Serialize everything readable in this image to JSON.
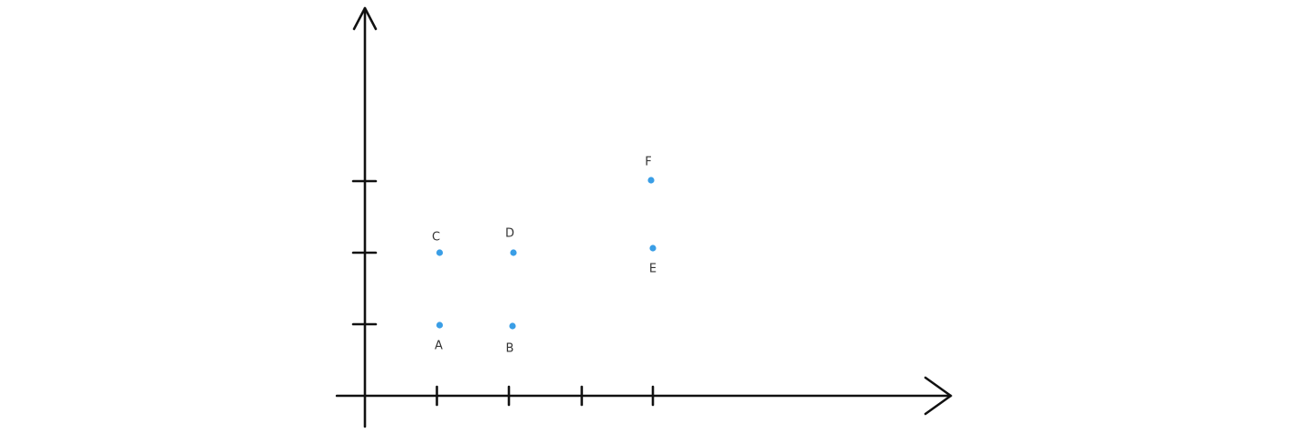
{
  "chart_data": {
    "type": "scatter",
    "grid": false,
    "x_ticks": [
      1,
      2,
      3,
      4
    ],
    "y_ticks": [
      1,
      2,
      3
    ],
    "point_color": "#3a9ee6",
    "axis_color": "#111111",
    "points": [
      {
        "label": "A",
        "x": 1,
        "y": 1
      },
      {
        "label": "B",
        "x": 2,
        "y": 1
      },
      {
        "label": "C",
        "x": 1,
        "y": 2
      },
      {
        "label": "D",
        "x": 2,
        "y": 2
      },
      {
        "label": "E",
        "x": 4,
        "y": 2
      },
      {
        "label": "F",
        "x": 4,
        "y": 3
      }
    ]
  }
}
